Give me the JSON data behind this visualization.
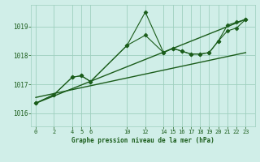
{
  "background_color": "#d0eee8",
  "grid_color": "#9ecfbf",
  "line_color": "#1a5c1a",
  "title": "Graphe pression niveau de la mer (hPa)",
  "ylabel_ticks": [
    1016,
    1017,
    1018,
    1019
  ],
  "xlim": [
    -0.5,
    24
  ],
  "ylim": [
    1015.55,
    1019.75
  ],
  "xticks": [
    0,
    2,
    4,
    5,
    6,
    10,
    12,
    14,
    15,
    16,
    17,
    18,
    19,
    20,
    21,
    22,
    23
  ],
  "series1_x": [
    0,
    2,
    4,
    5,
    6,
    10,
    12,
    14,
    15,
    16,
    17,
    18,
    19,
    20,
    21,
    22,
    23
  ],
  "series1_y": [
    1016.35,
    1016.65,
    1017.25,
    1017.3,
    1017.1,
    1018.35,
    1019.5,
    1018.1,
    1018.25,
    1018.15,
    1018.05,
    1018.05,
    1018.1,
    1018.5,
    1019.05,
    1019.15,
    1019.25
  ],
  "series2_x": [
    0,
    2,
    4,
    5,
    6,
    10,
    12,
    14,
    15,
    16,
    17,
    18,
    19,
    20,
    21,
    22,
    23
  ],
  "series2_y": [
    1016.35,
    1016.65,
    1017.25,
    1017.3,
    1017.1,
    1018.35,
    1018.7,
    1018.1,
    1018.25,
    1018.15,
    1018.05,
    1018.05,
    1018.1,
    1018.5,
    1018.85,
    1018.95,
    1019.25
  ],
  "series3_x": [
    0,
    23
  ],
  "series3_y": [
    1016.35,
    1019.25
  ],
  "series4_x": [
    0,
    23
  ],
  "series4_y": [
    1016.55,
    1018.1
  ]
}
